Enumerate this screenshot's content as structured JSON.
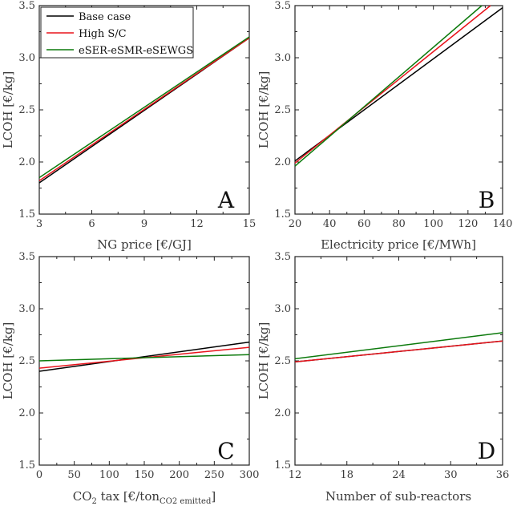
{
  "legend": [
    {
      "name": "Base case",
      "color": "#000000"
    },
    {
      "name": "High S/C",
      "color": "#e8141c"
    },
    {
      "name": "eSER-eSMR-eSEWGS",
      "color": "#0c7a0c"
    }
  ],
  "chart_data": [
    {
      "type": "line",
      "panel": "A",
      "xlabel": "NG price [€/GJ]",
      "ylabel": "LCOH [€/kg]",
      "xlim": [
        3,
        15
      ],
      "ylim": [
        1.5,
        3.5
      ],
      "xticks": [
        "3",
        "6",
        "9",
        "12",
        "15"
      ],
      "yticks": [
        "1.5",
        "2.0",
        "2.5",
        "3.0",
        "3.5"
      ],
      "series": [
        {
          "name": "Base case",
          "x": [
            3,
            15
          ],
          "y": [
            1.8,
            3.19
          ]
        },
        {
          "name": "High S/C",
          "x": [
            3,
            15
          ],
          "y": [
            1.82,
            3.19
          ]
        },
        {
          "name": "eSER-eSMR-eSEWGS",
          "x": [
            3,
            15
          ],
          "y": [
            1.85,
            3.2
          ]
        }
      ]
    },
    {
      "type": "line",
      "panel": "B",
      "xlabel": "Electricity price [€/MWh]",
      "ylabel": "LCOH [€/kg]",
      "xlim": [
        20,
        140
      ],
      "ylim": [
        1.5,
        3.5
      ],
      "xticks": [
        "20",
        "40",
        "60",
        "80",
        "100",
        "120",
        "140"
      ],
      "yticks": [
        "1.5",
        "2.0",
        "2.5",
        "3.0",
        "3.5"
      ],
      "series": [
        {
          "name": "Base case",
          "x": [
            20,
            140
          ],
          "y": [
            2.01,
            3.48
          ]
        },
        {
          "name": "High S/C",
          "x": [
            20,
            133
          ],
          "y": [
            1.99,
            3.5
          ]
        },
        {
          "name": "eSER-eSMR-eSEWGS",
          "x": [
            20,
            128
          ],
          "y": [
            1.96,
            3.5
          ]
        }
      ]
    },
    {
      "type": "line",
      "panel": "C",
      "xlabel": "CO2 tax [€/tonCO2 emitted]",
      "ylabel": "LCOH [€/kg]",
      "xlim": [
        0,
        300
      ],
      "ylim": [
        1.5,
        3.5
      ],
      "xticks": [
        "0",
        "50",
        "100",
        "150",
        "200",
        "250",
        "300"
      ],
      "yticks": [
        "1.5",
        "2.0",
        "2.5",
        "3.0",
        "3.5"
      ],
      "series": [
        {
          "name": "Base case",
          "x": [
            0,
            300
          ],
          "y": [
            2.4,
            2.68
          ]
        },
        {
          "name": "High S/C",
          "x": [
            0,
            300
          ],
          "y": [
            2.43,
            2.63
          ]
        },
        {
          "name": "eSER-eSMR-eSEWGS",
          "x": [
            0,
            300
          ],
          "y": [
            2.5,
            2.56
          ]
        }
      ]
    },
    {
      "type": "line",
      "panel": "D",
      "xlabel": "Number of sub-reactors",
      "ylabel": "LCOH [€/kg]",
      "xlim": [
        12,
        36
      ],
      "ylim": [
        1.5,
        3.5
      ],
      "xticks": [
        "12",
        "18",
        "24",
        "30",
        "36"
      ],
      "yticks": [
        "1.5",
        "2.0",
        "2.5",
        "3.0",
        "3.5"
      ],
      "series": [
        {
          "name": "Base case",
          "x": [
            12,
            36
          ],
          "y": [
            2.49,
            2.69
          ]
        },
        {
          "name": "High S/C",
          "x": [
            12,
            36
          ],
          "y": [
            2.49,
            2.69
          ]
        },
        {
          "name": "eSER-eSMR-eSEWGS",
          "x": [
            12,
            36
          ],
          "y": [
            2.52,
            2.77
          ]
        }
      ]
    }
  ],
  "panel_c_xlabel_parts": {
    "pre": "CO",
    "sub1": "2",
    "mid": " tax [€/ton",
    "sub2": "CO2 emitted",
    "post": "]"
  }
}
